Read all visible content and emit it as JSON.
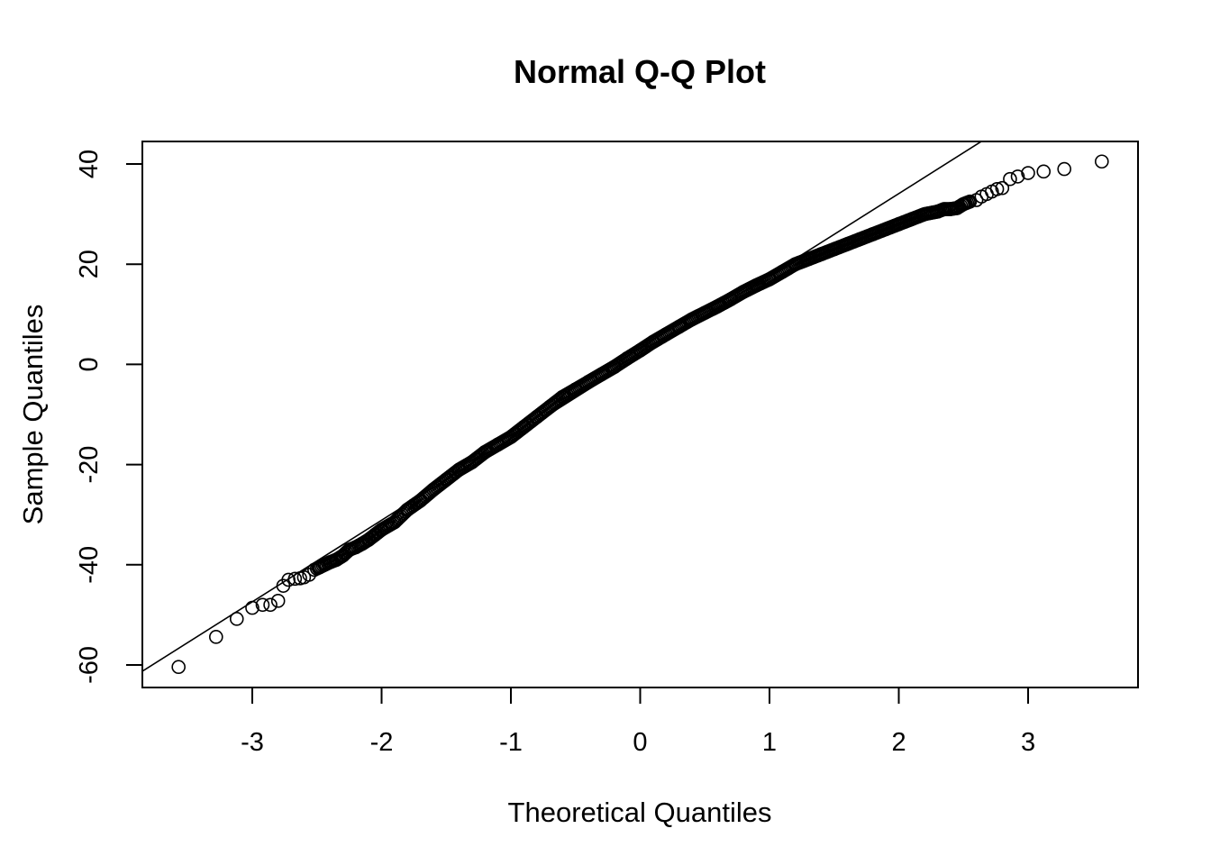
{
  "chart_data": {
    "type": "scatter",
    "title": "Normal Q-Q Plot",
    "xlabel": "Theoretical Quantiles",
    "ylabel": "Sample Quantiles",
    "xlim": [
      -3.85,
      3.85
    ],
    "ylim": [
      -64.5,
      44.5
    ],
    "x_ticks": [
      -3,
      -2,
      -1,
      0,
      1,
      2,
      3
    ],
    "x_tick_labels": [
      "-3",
      "-2",
      "-1",
      "0",
      "1",
      "2",
      "3"
    ],
    "y_ticks": [
      -60,
      -40,
      -20,
      0,
      20,
      40
    ],
    "y_tick_labels": [
      "-60",
      "-40",
      "-20",
      "0",
      "20",
      "40"
    ],
    "grid": false,
    "reference_line": {
      "intercept": 1.5,
      "slope": 16.3
    },
    "series": [
      {
        "marker": "open-circle",
        "x": [
          -3.57,
          -3.28,
          -3.12,
          -3.0,
          -2.92,
          -2.86,
          -2.8,
          -2.76,
          -2.72,
          -2.67,
          -2.63,
          -2.6,
          -2.56,
          -2.52,
          -2.48,
          -2.44,
          -2.4,
          -2.35,
          -2.3,
          -2.25,
          -2.2,
          -2.15,
          -2.1,
          -2.05,
          -2.0,
          -1.9,
          -1.8,
          -1.7,
          -1.6,
          -1.5,
          -1.4,
          -1.3,
          -1.2,
          -1.1,
          -1.0,
          -0.9,
          -0.8,
          -0.7,
          -0.6,
          -0.5,
          -0.4,
          -0.3,
          -0.2,
          -0.1,
          0.0,
          0.1,
          0.2,
          0.3,
          0.4,
          0.5,
          0.6,
          0.7,
          0.8,
          0.9,
          1.0,
          1.1,
          1.2,
          1.3,
          1.4,
          1.5,
          1.6,
          1.7,
          1.8,
          1.9,
          2.0,
          2.1,
          2.2,
          2.3,
          2.35,
          2.4,
          2.45,
          2.5,
          2.55,
          2.6,
          2.64,
          2.68,
          2.72,
          2.76,
          2.8,
          2.86,
          2.92,
          3.0,
          3.12,
          3.28,
          3.57
        ],
        "y": [
          -60.4,
          -54.4,
          -50.8,
          -48.6,
          -48.0,
          -48.0,
          -47.2,
          -44.2,
          -43.0,
          -42.8,
          -42.7,
          -42.5,
          -42.0,
          -41.0,
          -40.5,
          -40.0,
          -39.5,
          -39.0,
          -38.2,
          -37.0,
          -36.5,
          -35.8,
          -35.0,
          -34.0,
          -33.0,
          -31.5,
          -29.0,
          -27.2,
          -25.0,
          -23.0,
          -21.0,
          -19.5,
          -17.5,
          -16.0,
          -14.5,
          -12.5,
          -10.5,
          -8.5,
          -6.5,
          -5.0,
          -3.5,
          -2.0,
          -0.5,
          1.2,
          2.8,
          4.5,
          6.0,
          7.5,
          9.0,
          10.3,
          11.6,
          13.0,
          14.5,
          15.8,
          17.0,
          18.5,
          20.0,
          21.0,
          22.0,
          23.0,
          24.0,
          25.0,
          26.0,
          27.0,
          28.0,
          29.0,
          30.0,
          30.5,
          31.0,
          31.0,
          31.2,
          32.0,
          32.5,
          32.8,
          33.5,
          34.0,
          34.5,
          35.0,
          35.2,
          37.0,
          37.5,
          38.2,
          38.5,
          39.0,
          40.5
        ]
      }
    ]
  }
}
